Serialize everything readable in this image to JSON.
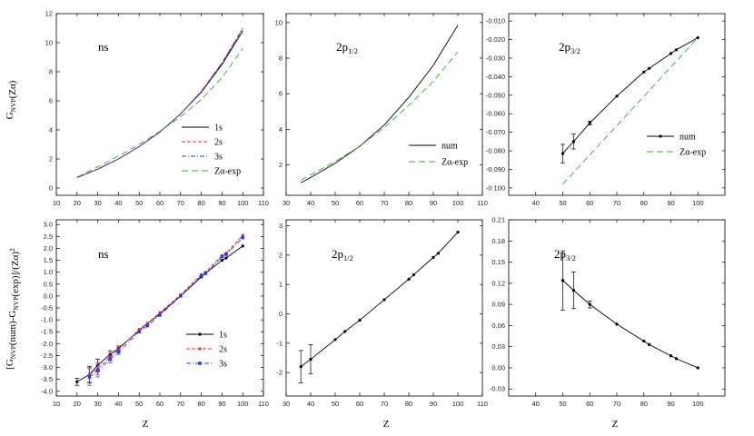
{
  "figure": {
    "xlabel": "Z",
    "ylabel_top": "G_{NVP}(Zα)",
    "ylabel_bottom": "[G_{NVP}(num)-G_{NVP}(exp)]/(Zα)^2"
  },
  "chart_data": [
    {
      "type": "line",
      "label": "ns",
      "xlim": [
        10,
        110
      ],
      "ylim": [
        -0.5,
        12
      ],
      "xticks": [
        10,
        20,
        30,
        40,
        50,
        60,
        70,
        80,
        90,
        100,
        110
      ],
      "yticks": [
        0,
        2,
        4,
        6,
        8,
        10,
        12
      ],
      "legend_position": "lower-right",
      "series": [
        {
          "name": "1s",
          "color": "#000000",
          "dash": "solid",
          "x": [
            20,
            30,
            40,
            50,
            60,
            70,
            80,
            90,
            100
          ],
          "y": [
            0.72,
            1.3,
            2.0,
            2.85,
            3.85,
            5.1,
            6.6,
            8.5,
            10.8
          ]
        },
        {
          "name": "2s",
          "color": "#ff2020",
          "dash": "4,2",
          "x": [
            20,
            30,
            40,
            50,
            60,
            70,
            80,
            90,
            100
          ],
          "y": [
            0.72,
            1.3,
            2.0,
            2.85,
            3.85,
            5.1,
            6.65,
            8.6,
            10.95
          ]
        },
        {
          "name": "3s",
          "color": "#2040ff",
          "dash": "5,2,1,2",
          "x": [
            20,
            30,
            40,
            50,
            60,
            70,
            80,
            90,
            100
          ],
          "y": [
            0.72,
            1.3,
            2.0,
            2.85,
            3.85,
            5.1,
            6.65,
            8.62,
            11.0
          ]
        },
        {
          "name": "Zα-exp",
          "color": "#3aa83a",
          "dash": "7,4",
          "x": [
            20,
            30,
            40,
            50,
            60,
            70,
            80,
            90,
            100
          ],
          "y": [
            0.75,
            1.45,
            2.2,
            3.0,
            3.9,
            4.9,
            6.1,
            7.6,
            9.6
          ]
        }
      ]
    },
    {
      "type": "line",
      "label": "2p_{1/2}",
      "xlim": [
        30,
        110
      ],
      "ylim": [
        0.3,
        10.5
      ],
      "xticks": [
        30,
        40,
        50,
        60,
        70,
        80,
        90,
        100,
        110
      ],
      "yticks": [
        2,
        4,
        6,
        8,
        10
      ],
      "legend_position": "lower-right",
      "series": [
        {
          "name": "num",
          "color": "#000000",
          "dash": "solid",
          "x": [
            36,
            40,
            50,
            60,
            70,
            80,
            90,
            100
          ],
          "y": [
            1.0,
            1.3,
            2.1,
            3.05,
            4.25,
            5.8,
            7.6,
            9.85
          ]
        },
        {
          "name": "Zα-exp",
          "color": "#3aa83a",
          "dash": "7,4",
          "x": [
            36,
            40,
            50,
            60,
            70,
            80,
            90,
            100
          ],
          "y": [
            1.15,
            1.45,
            2.2,
            3.05,
            4.1,
            5.35,
            6.7,
            8.35
          ]
        }
      ]
    },
    {
      "type": "line",
      "label": "2p_{3/2}",
      "xlim": [
        30,
        110
      ],
      "ylim": [
        -0.104,
        -0.006
      ],
      "xticks": [
        40,
        50,
        60,
        70,
        80,
        90,
        100
      ],
      "yticks": [
        -0.01,
        -0.02,
        -0.03,
        -0.04,
        -0.05,
        -0.06,
        -0.07,
        -0.08,
        -0.09,
        -0.1
      ],
      "legend_position": "lower-right",
      "series": [
        {
          "name": "num",
          "color": "#000000",
          "dash": "solid",
          "markers": true,
          "x": [
            50,
            54,
            60,
            70,
            80,
            82,
            90,
            92,
            100
          ],
          "y": [
            -0.0815,
            -0.075,
            -0.065,
            -0.0505,
            -0.0375,
            -0.0355,
            -0.0275,
            -0.0255,
            -0.019
          ],
          "err": [
            0.005,
            0.004,
            0.001,
            0,
            0,
            0,
            0,
            0,
            0
          ]
        },
        {
          "name": "Zα-exp",
          "color": "#3aa83a",
          "dash": "7,4",
          "x": [
            50,
            100
          ],
          "y": [
            -0.098,
            -0.019
          ]
        }
      ]
    },
    {
      "type": "line",
      "label": "ns",
      "xlim": [
        10,
        110
      ],
      "ylim": [
        -4.2,
        3.2
      ],
      "xticks": [
        10,
        20,
        30,
        40,
        50,
        60,
        70,
        80,
        90,
        100,
        110
      ],
      "yticks": [
        -4,
        -3.5,
        -3,
        -2.5,
        -2,
        -1.5,
        -1,
        -0.5,
        0,
        0.5,
        1,
        1.5,
        2,
        2.5,
        3
      ],
      "legend_position": "lower-right",
      "series": [
        {
          "name": "1s",
          "color": "#000000",
          "dash": "solid",
          "marker": "circle",
          "x": [
            20,
            26,
            30,
            36,
            40,
            50,
            54,
            60,
            70,
            80,
            82,
            90,
            92,
            100
          ],
          "y": [
            -3.6,
            -3.3,
            -2.9,
            -2.45,
            -2.2,
            -1.45,
            -1.15,
            -0.75,
            0.0,
            0.8,
            0.95,
            1.5,
            1.6,
            2.1
          ],
          "err": [
            0.15,
            0.35,
            0.25,
            0.15,
            0.1,
            0,
            0,
            0,
            0,
            0,
            0,
            0,
            0,
            0
          ]
        },
        {
          "name": "2s",
          "color": "#ff2020",
          "dash": "4,2",
          "marker": "circle",
          "x": [
            26,
            30,
            36,
            40,
            50,
            54,
            60,
            70,
            80,
            82,
            90,
            92,
            100
          ],
          "y": [
            -3.3,
            -3.05,
            -2.55,
            -2.25,
            -1.4,
            -1.15,
            -0.7,
            0.05,
            0.9,
            1.0,
            1.7,
            1.8,
            2.55
          ],
          "err": [
            0.3,
            0.25,
            0.15,
            0.1,
            0,
            0,
            0,
            0,
            0,
            0,
            0,
            0,
            0
          ]
        },
        {
          "name": "3s",
          "color": "#2040ff",
          "dash": "5,2,1,2",
          "marker": "square",
          "x": [
            26,
            30,
            36,
            40,
            50,
            54,
            60,
            70,
            80,
            82,
            90,
            92,
            100
          ],
          "y": [
            -3.4,
            -3.15,
            -2.65,
            -2.35,
            -1.5,
            -1.25,
            -0.8,
            0.0,
            0.85,
            0.95,
            1.65,
            1.75,
            2.45
          ],
          "err": [
            0.35,
            0.25,
            0.15,
            0.1,
            0,
            0,
            0,
            0,
            0,
            0,
            0,
            0,
            0
          ]
        }
      ]
    },
    {
      "type": "line",
      "label": "2p_{1/2}",
      "xlim": [
        30,
        110
      ],
      "ylim": [
        -2.8,
        3.2
      ],
      "xticks": [
        30,
        40,
        50,
        60,
        70,
        80,
        90,
        100,
        110
      ],
      "yticks": [
        -2,
        -1,
        0,
        1,
        2,
        3
      ],
      "series": [
        {
          "name": "",
          "color": "#000000",
          "dash": "solid",
          "marker": "circle",
          "x": [
            36,
            40,
            50,
            54,
            60,
            70,
            80,
            82,
            90,
            92,
            100
          ],
          "y": [
            -1.8,
            -1.55,
            -0.88,
            -0.6,
            -0.22,
            0.48,
            1.18,
            1.33,
            1.92,
            2.06,
            2.78
          ],
          "err": [
            0.55,
            0.5,
            0,
            0,
            0,
            0,
            0,
            0,
            0,
            0,
            0
          ]
        }
      ]
    },
    {
      "type": "line",
      "label": "2p_{3/2}",
      "xlim": [
        30,
        110
      ],
      "ylim": [
        -0.04,
        0.21
      ],
      "xticks": [
        40,
        50,
        60,
        70,
        80,
        90,
        100
      ],
      "yticks": [
        -0.03,
        0.0,
        0.03,
        0.06,
        0.09,
        0.12,
        0.15,
        0.18,
        0.21
      ],
      "series": [
        {
          "name": "",
          "color": "#000000",
          "dash": "solid",
          "marker": "circle",
          "x": [
            50,
            54,
            60,
            70,
            80,
            82,
            90,
            92,
            100
          ],
          "y": [
            0.124,
            0.11,
            0.09,
            0.062,
            0.038,
            0.033,
            0.017,
            0.013,
            0.0
          ],
          "err": [
            0.042,
            0.026,
            0.005,
            0,
            0,
            0,
            0,
            0,
            0
          ]
        }
      ]
    }
  ]
}
